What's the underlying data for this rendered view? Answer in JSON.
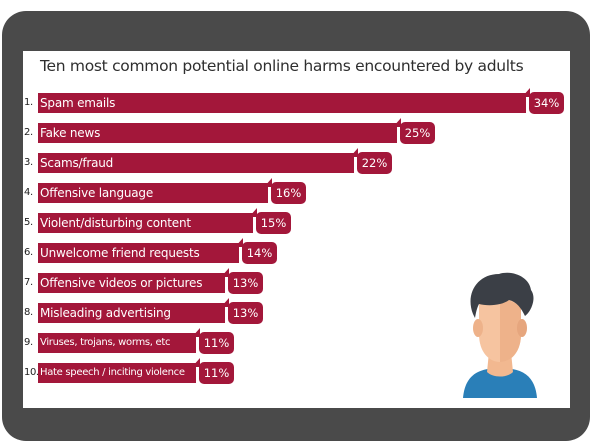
{
  "chart_data": {
    "type": "bar",
    "orientation": "horizontal",
    "title": "Ten most common potential online harms encountered by adults",
    "ranks": [
      "1.",
      "2.",
      "3.",
      "4.",
      "5.",
      "6.",
      "7.",
      "8.",
      "9.",
      "10."
    ],
    "categories": [
      "Spam emails",
      "Fake news",
      "Scams/fraud",
      "Offensive language",
      "Violent/disturbing content",
      "Unwelcome friend requests",
      "Offensive videos or pictures",
      "Misleading advertising",
      "Viruses, trojans, worms, etc",
      "Hate speech / inciting violence"
    ],
    "values": [
      34,
      25,
      22,
      16,
      15,
      14,
      13,
      13,
      11,
      11
    ],
    "value_labels": [
      "34%",
      "25%",
      "22%",
      "16%",
      "15%",
      "14%",
      "13%",
      "13%",
      "11%",
      "11%"
    ],
    "unit": "%",
    "xlim": [
      0,
      34
    ],
    "grid": false,
    "legend": "none"
  },
  "colors": {
    "bar": "#a3173a",
    "device_frame": "#4a4a4a",
    "title_text": "#2f2f2f"
  },
  "decorations": {
    "avatar_icon": "person-avatar-icon"
  }
}
